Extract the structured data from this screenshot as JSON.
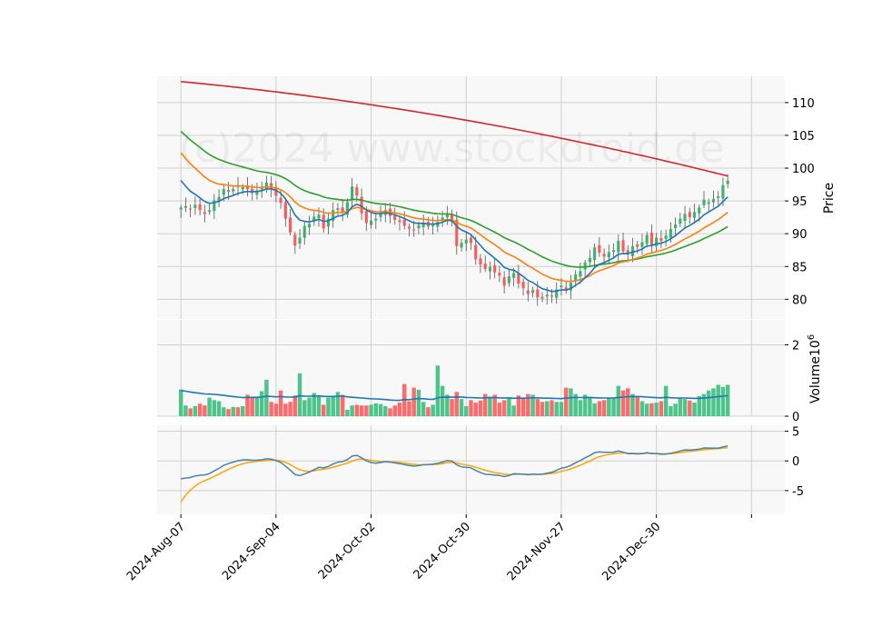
{
  "watermark": "(c)2024 www.stockdroid.de",
  "colors": {
    "panel_bg": "#f8f8f8",
    "grid": "#d0d0d0",
    "up": "#3cb371",
    "down": "#ff5a5a",
    "volume_up": "#4cc48a",
    "volume_down": "#ff6b6b",
    "ma_fast": "#1f77b4",
    "ma_mid": "#ff7f0e",
    "ma_slow": "#2ca02c",
    "ma_long": "#d62728",
    "volume_avg": "#1f77b4",
    "osc_line": "#4682b4",
    "osc_signal": "#ffa500"
  },
  "chart_data": [
    {
      "type": "candlestick",
      "ylabel": "Price",
      "ylim": [
        77,
        114
      ],
      "yticks": [
        80,
        85,
        90,
        95,
        100,
        105,
        110
      ],
      "xlim": [
        -5,
        127
      ],
      "x_tick_labels": [
        "2024-Aug-07",
        "2024-Sep-04",
        "2024-Oct-02",
        "2024-Oct-30",
        "2024-Nov-27",
        "2024-Dec-30"
      ],
      "x_tick_index": [
        0,
        20,
        40,
        60,
        80,
        100,
        120
      ],
      "grid": true,
      "closes": [
        94.0,
        94.2,
        93.7,
        94.4,
        93.6,
        93.0,
        93.6,
        95.1,
        95.6,
        96.8,
        96.4,
        96.8,
        97.1,
        97.1,
        96.8,
        96.2,
        96.6,
        97.0,
        97.8,
        96.8,
        95.8,
        94.7,
        92.3,
        90.2,
        88.2,
        89.4,
        91.2,
        91.5,
        92.6,
        92.9,
        90.8,
        92.3,
        93.6,
        93.9,
        93.2,
        94.8,
        97.2,
        95.8,
        93.1,
        91.6,
        92.0,
        92.3,
        93.2,
        93.6,
        92.7,
        92.1,
        91.8,
        91.2,
        90.8,
        90.5,
        91.3,
        91.7,
        91.1,
        91.4,
        91.8,
        92.5,
        93.1,
        91.8,
        88.1,
        88.6,
        89.1,
        88.6,
        86.1,
        85.3,
        84.6,
        84.9,
        84.1,
        83.6,
        82.1,
        83.5,
        84.0,
        82.4,
        81.7,
        80.8,
        81.4,
        80.3,
        80.1,
        80.7,
        80.4,
        81.5,
        82.1,
        81.3,
        82.5,
        83.8,
        84.3,
        85.6,
        86.3,
        87.9,
        87.1,
        86.5,
        87.2,
        87.5,
        88.9,
        87.3,
        86.9,
        88.1,
        88.0,
        88.7,
        89.8,
        88.3,
        89.4,
        88.9,
        89.7,
        90.7,
        91.4,
        92.3,
        93.0,
        92.5,
        93.3,
        94.0,
        95.2,
        94.8,
        95.3,
        95.7,
        97.4,
        98.1
      ],
      "volumes": [
        0.75,
        0.3,
        0.22,
        0.28,
        0.35,
        0.3,
        0.52,
        0.45,
        0.42,
        0.25,
        0.2,
        0.26,
        0.25,
        0.28,
        0.6,
        0.55,
        0.55,
        0.7,
        1.02,
        0.4,
        0.35,
        0.72,
        0.35,
        0.4,
        0.58,
        1.2,
        0.45,
        0.52,
        0.65,
        0.58,
        0.32,
        0.52,
        0.56,
        0.68,
        0.6,
        0.18,
        0.3,
        0.32,
        0.3,
        0.3,
        0.32,
        0.36,
        0.34,
        0.28,
        0.22,
        0.3,
        0.38,
        0.9,
        0.42,
        0.8,
        0.74,
        0.4,
        0.25,
        0.32,
        1.42,
        0.85,
        0.6,
        0.48,
        0.68,
        0.48,
        0.28,
        0.45,
        0.38,
        0.44,
        0.62,
        0.55,
        0.6,
        0.38,
        0.45,
        0.52,
        0.3,
        0.58,
        0.5,
        0.62,
        0.6,
        0.48,
        0.4,
        0.42,
        0.45,
        0.4,
        0.4,
        0.8,
        0.78,
        0.62,
        0.45,
        0.6,
        0.52,
        0.36,
        0.42,
        0.45,
        0.5,
        0.52,
        0.85,
        0.72,
        0.78,
        0.62,
        0.55,
        0.42,
        0.35,
        0.36,
        0.38,
        0.42,
        0.85,
        0.28,
        0.35,
        0.52,
        0.48,
        0.44,
        0.38,
        0.56,
        0.62,
        0.72,
        0.78,
        0.88,
        0.82,
        0.88
      ],
      "ma_fast_start": 99.3,
      "ma_mid_start": 103.3,
      "ma_slow_start": 106.3,
      "ma_long_start": 113.2,
      "ma_long_end": 98.8
    },
    {
      "type": "bar",
      "ylabel": "Volume",
      "ylabel_exponent": "6",
      "ylim": [
        0,
        2.7
      ],
      "yticks": [
        0,
        2
      ],
      "grid": true
    },
    {
      "type": "line",
      "ylim": [
        -9,
        6
      ],
      "yticks": [
        -5,
        0,
        5
      ],
      "grid": true
    }
  ]
}
